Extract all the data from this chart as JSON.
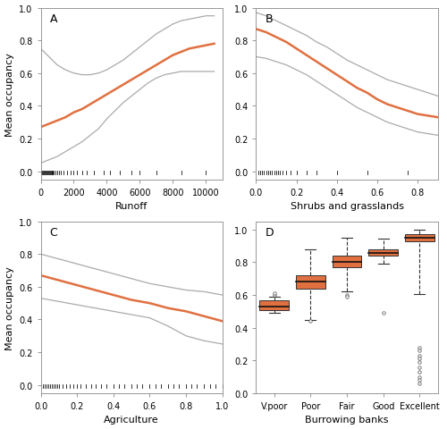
{
  "panel_A": {
    "label": "A",
    "xlabel": "Runoff",
    "ylabel": "Mean occupancy",
    "xlim": [
      0,
      11000
    ],
    "ylim": [
      -0.05,
      1.0
    ],
    "xticks": [
      0,
      2000,
      4000,
      6000,
      8000,
      10000
    ],
    "yticks": [
      0.0,
      0.2,
      0.4,
      0.6,
      0.8,
      1.0
    ],
    "line_x": [
      0,
      500,
      1000,
      1500,
      2000,
      2500,
      3000,
      3500,
      4000,
      4500,
      5000,
      5500,
      6000,
      6500,
      7000,
      7500,
      8000,
      8500,
      9000,
      9500,
      10000,
      10500
    ],
    "line_y": [
      0.27,
      0.29,
      0.31,
      0.33,
      0.36,
      0.38,
      0.41,
      0.44,
      0.47,
      0.5,
      0.53,
      0.56,
      0.59,
      0.62,
      0.65,
      0.68,
      0.71,
      0.73,
      0.75,
      0.76,
      0.77,
      0.78
    ],
    "upper_y": [
      0.75,
      0.7,
      0.65,
      0.62,
      0.6,
      0.59,
      0.59,
      0.6,
      0.62,
      0.65,
      0.68,
      0.72,
      0.76,
      0.8,
      0.84,
      0.87,
      0.9,
      0.92,
      0.93,
      0.94,
      0.95,
      0.95
    ],
    "lower_y": [
      0.05,
      0.07,
      0.09,
      0.12,
      0.15,
      0.18,
      0.22,
      0.26,
      0.32,
      0.37,
      0.42,
      0.46,
      0.5,
      0.54,
      0.57,
      0.59,
      0.6,
      0.61,
      0.61,
      0.61,
      0.61,
      0.61
    ],
    "rug_x": [
      50,
      100,
      150,
      200,
      250,
      300,
      350,
      400,
      450,
      500,
      550,
      600,
      650,
      700,
      750,
      800,
      900,
      1000,
      1100,
      1200,
      1400,
      1600,
      1800,
      2000,
      2200,
      2500,
      2800,
      3200,
      3800,
      4200,
      4800,
      5500,
      6000,
      7000,
      8500,
      10000
    ]
  },
  "panel_B": {
    "label": "B",
    "xlabel": "Shrubs and grasslands",
    "ylabel": "Mean occupancy",
    "xlim": [
      0.0,
      0.9
    ],
    "ylim": [
      -0.05,
      1.0
    ],
    "xticks": [
      0.0,
      0.2,
      0.4,
      0.6,
      0.8
    ],
    "yticks": [
      0.0,
      0.2,
      0.4,
      0.6,
      0.8,
      1.0
    ],
    "line_x": [
      0.0,
      0.05,
      0.1,
      0.15,
      0.2,
      0.25,
      0.3,
      0.35,
      0.4,
      0.45,
      0.5,
      0.55,
      0.6,
      0.65,
      0.7,
      0.75,
      0.8,
      0.85,
      0.9
    ],
    "line_y": [
      0.87,
      0.85,
      0.82,
      0.79,
      0.75,
      0.71,
      0.67,
      0.63,
      0.59,
      0.55,
      0.51,
      0.48,
      0.44,
      0.41,
      0.39,
      0.37,
      0.35,
      0.34,
      0.33
    ],
    "upper_y": [
      0.97,
      0.95,
      0.92,
      0.89,
      0.86,
      0.83,
      0.79,
      0.76,
      0.72,
      0.68,
      0.65,
      0.62,
      0.59,
      0.56,
      0.54,
      0.52,
      0.5,
      0.48,
      0.46
    ],
    "lower_y": [
      0.7,
      0.69,
      0.67,
      0.65,
      0.62,
      0.59,
      0.55,
      0.51,
      0.47,
      0.43,
      0.39,
      0.36,
      0.33,
      0.3,
      0.28,
      0.26,
      0.24,
      0.23,
      0.22
    ],
    "rug_x": [
      0.01,
      0.02,
      0.03,
      0.04,
      0.05,
      0.06,
      0.07,
      0.08,
      0.09,
      0.1,
      0.11,
      0.12,
      0.13,
      0.15,
      0.17,
      0.2,
      0.25,
      0.3,
      0.4,
      0.55,
      0.75
    ]
  },
  "panel_C": {
    "label": "C",
    "xlabel": "Agriculture",
    "ylabel": "Mean occupancy",
    "xlim": [
      0.0,
      1.0
    ],
    "ylim": [
      -0.05,
      1.0
    ],
    "xticks": [
      0.0,
      0.2,
      0.4,
      0.6,
      0.8,
      1.0
    ],
    "yticks": [
      0.0,
      0.2,
      0.4,
      0.6,
      0.8,
      1.0
    ],
    "line_x": [
      0.0,
      0.1,
      0.2,
      0.3,
      0.4,
      0.5,
      0.6,
      0.7,
      0.8,
      0.9,
      1.0
    ],
    "line_y": [
      0.67,
      0.64,
      0.61,
      0.58,
      0.55,
      0.52,
      0.5,
      0.47,
      0.45,
      0.42,
      0.39
    ],
    "upper_y": [
      0.8,
      0.77,
      0.74,
      0.71,
      0.68,
      0.65,
      0.62,
      0.6,
      0.58,
      0.57,
      0.55
    ],
    "lower_y": [
      0.53,
      0.51,
      0.49,
      0.47,
      0.45,
      0.43,
      0.41,
      0.36,
      0.3,
      0.27,
      0.25
    ],
    "rug_x": [
      0.01,
      0.02,
      0.03,
      0.04,
      0.05,
      0.06,
      0.07,
      0.08,
      0.09,
      0.1,
      0.12,
      0.14,
      0.16,
      0.18,
      0.2,
      0.22,
      0.25,
      0.28,
      0.3,
      0.33,
      0.36,
      0.4,
      0.43,
      0.46,
      0.5,
      0.53,
      0.56,
      0.6,
      0.63,
      0.66,
      0.7,
      0.73,
      0.76,
      0.8,
      0.83,
      0.86,
      0.9,
      0.93,
      0.96,
      1.0
    ]
  },
  "panel_D": {
    "label": "D",
    "xlabel": "Burrowing banks",
    "ylabel": "",
    "categories": [
      "V.poor",
      "Poor",
      "Fair",
      "Good",
      "Excellent"
    ],
    "xlim": [
      -0.5,
      4.5
    ],
    "ylim": [
      0.0,
      1.05
    ],
    "yticks": [
      0.0,
      0.2,
      0.4,
      0.6,
      0.8,
      1.0
    ],
    "medians": [
      0.53,
      0.68,
      0.805,
      0.855,
      0.95
    ],
    "q1": [
      0.51,
      0.64,
      0.77,
      0.84,
      0.93
    ],
    "q3": [
      0.565,
      0.72,
      0.84,
      0.88,
      0.97
    ],
    "whisker_low": [
      0.49,
      0.445,
      0.62,
      0.79,
      0.605
    ],
    "whisker_high": [
      0.59,
      0.88,
      0.95,
      0.945,
      1.0
    ],
    "outliers_x": [
      0,
      0,
      1,
      2,
      2,
      3,
      4,
      4,
      4,
      4,
      4,
      4,
      4,
      4,
      4,
      4
    ],
    "outliers_y": [
      0.6,
      0.61,
      0.44,
      0.6,
      0.59,
      0.49,
      0.28,
      0.26,
      0.23,
      0.21,
      0.19,
      0.16,
      0.13,
      0.1,
      0.08,
      0.06
    ],
    "box_color": "#E07040",
    "whisker_color": "#333333"
  },
  "line_color": "#E07040",
  "ci_color": "#AAAAAA",
  "rug_color": "#111111",
  "bg_color": "#FFFFFF"
}
